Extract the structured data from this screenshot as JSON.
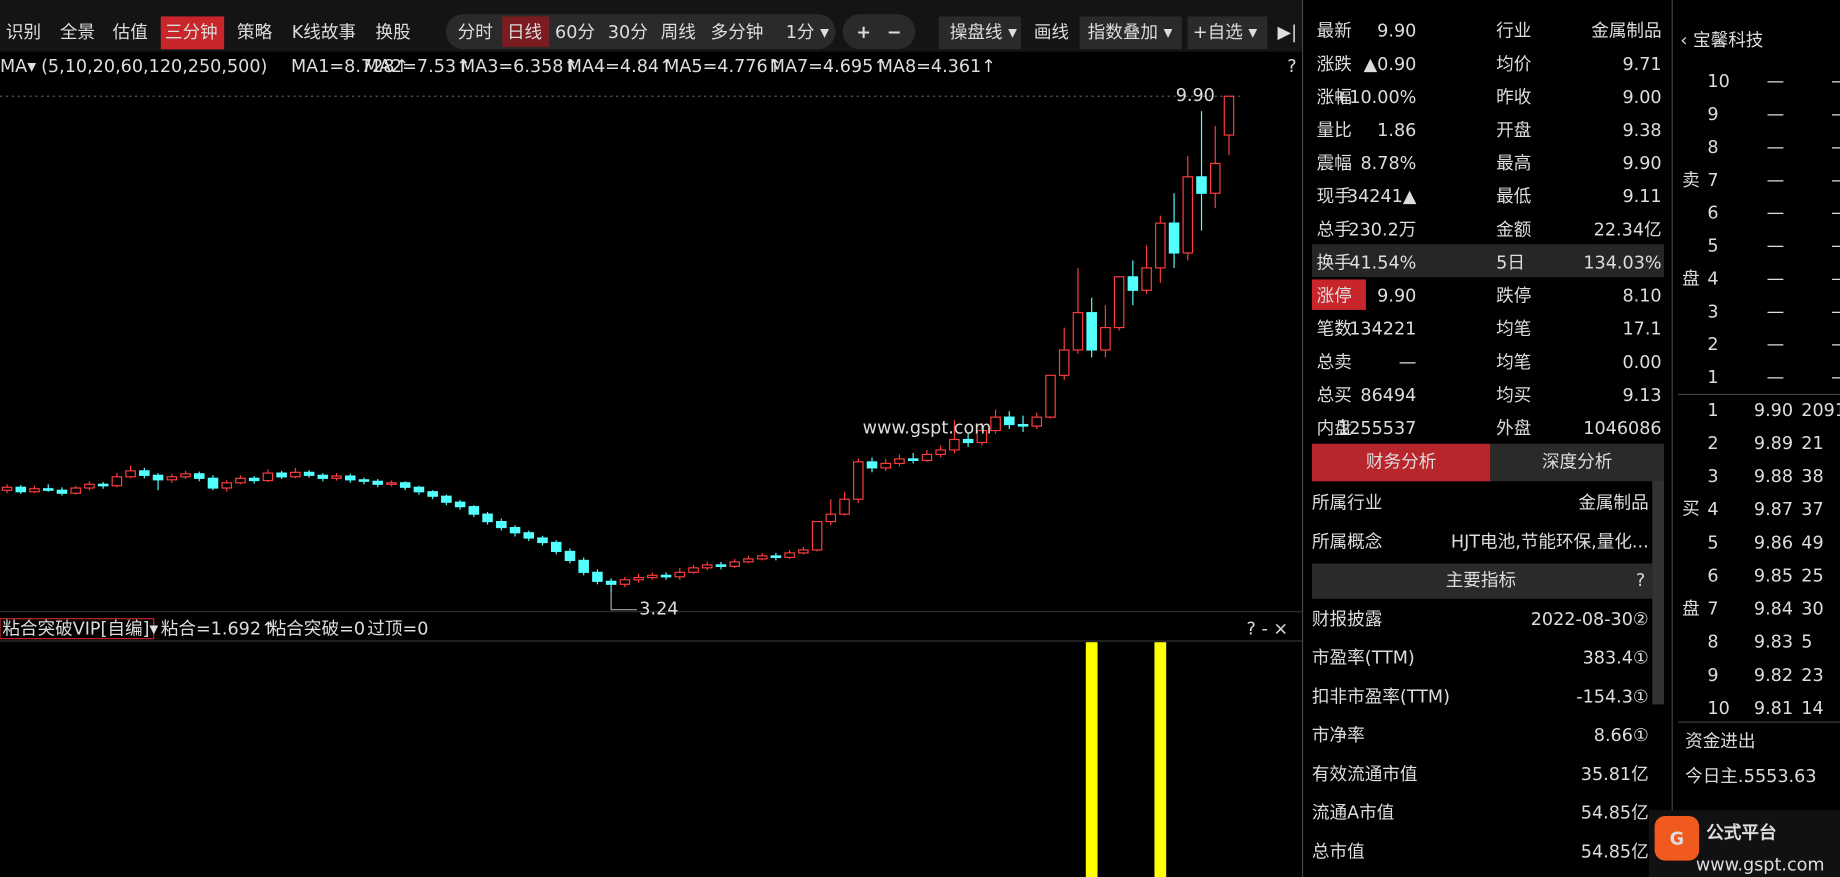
{
  "toolbar": {
    "left": [
      "识别",
      "全景",
      "估值",
      "三分钟",
      "策略",
      "K线故事",
      "换股"
    ],
    "periods": [
      "分时",
      "日线",
      "60分",
      "30分",
      "周线",
      "多分钟",
      "1分 ▾"
    ],
    "zoom": [
      "+",
      "−"
    ],
    "tools": [
      "操盘线 ▾",
      "画线",
      "指数叠加 ▾",
      "+自选 ▾"
    ],
    "collapse": "▶|"
  },
  "ma_legend": {
    "label": "MA▾",
    "params": "(5,10,20,60,120,250,500)",
    "items": [
      {
        "text": "MA1=8.728↑",
        "color": "#ffffff"
      },
      {
        "text": "MA2=7.53↑",
        "color": "#ffff33"
      },
      {
        "text": "MA3=6.358↑",
        "color": "#ff44ff"
      },
      {
        "text": "MA4=4.84↑",
        "color": "#ff3333"
      },
      {
        "text": "MA5=4.776↑",
        "color": "#33ff33"
      },
      {
        "text": "MA7=4.695↑",
        "color": "#3a8dff"
      },
      {
        "text": "MA8=4.361↑",
        "color": "#b040ff"
      }
    ],
    "help": "?"
  },
  "chart_data": {
    "type": "candlestick",
    "ylim": [
      3.04,
      10.12
    ],
    "up_color": "#ff3d3d",
    "down_color": "#54ffff",
    "high_label": "9.90",
    "low_label": "3.24",
    "watermark": "www.gspt.com",
    "candles": [
      [
        4.62,
        4.66,
        4.7,
        4.58
      ],
      [
        4.66,
        4.6,
        4.69,
        4.57
      ],
      [
        4.6,
        4.64,
        4.68,
        4.58
      ],
      [
        4.64,
        4.62,
        4.7,
        4.6
      ],
      [
        4.62,
        4.58,
        4.66,
        4.55
      ],
      [
        4.58,
        4.65,
        4.68,
        4.56
      ],
      [
        4.65,
        4.7,
        4.74,
        4.62
      ],
      [
        4.7,
        4.68,
        4.73,
        4.64
      ],
      [
        4.68,
        4.8,
        4.85,
        4.66
      ],
      [
        4.8,
        4.88,
        4.95,
        4.78
      ],
      [
        4.88,
        4.82,
        4.92,
        4.78
      ],
      [
        4.82,
        4.76,
        4.85,
        4.62
      ],
      [
        4.76,
        4.8,
        4.84,
        4.72
      ],
      [
        4.8,
        4.84,
        4.88,
        4.77
      ],
      [
        4.84,
        4.78,
        4.87,
        4.74
      ],
      [
        4.78,
        4.65,
        4.82,
        4.62
      ],
      [
        4.65,
        4.72,
        4.76,
        4.6
      ],
      [
        4.72,
        4.78,
        4.82,
        4.7
      ],
      [
        4.78,
        4.75,
        4.81,
        4.71
      ],
      [
        4.75,
        4.85,
        4.9,
        4.73
      ],
      [
        4.85,
        4.8,
        4.88,
        4.77
      ],
      [
        4.8,
        4.86,
        4.92,
        4.78
      ],
      [
        4.86,
        4.82,
        4.89,
        4.79
      ],
      [
        4.82,
        4.78,
        4.85,
        4.74
      ],
      [
        4.78,
        4.81,
        4.85,
        4.75
      ],
      [
        4.81,
        4.76,
        4.84,
        4.72
      ],
      [
        4.76,
        4.74,
        4.79,
        4.7
      ],
      [
        4.74,
        4.7,
        4.77,
        4.66
      ],
      [
        4.7,
        4.72,
        4.75,
        4.67
      ],
      [
        4.72,
        4.66,
        4.74,
        4.62
      ],
      [
        4.66,
        4.6,
        4.68,
        4.56
      ],
      [
        4.6,
        4.54,
        4.62,
        4.5
      ],
      [
        4.54,
        4.46,
        4.56,
        4.42
      ],
      [
        4.46,
        4.4,
        4.49,
        4.36
      ],
      [
        4.4,
        4.3,
        4.42,
        4.26
      ],
      [
        4.3,
        4.2,
        4.33,
        4.16
      ],
      [
        4.2,
        4.12,
        4.24,
        4.08
      ],
      [
        4.12,
        4.05,
        4.15,
        4.0
      ],
      [
        4.05,
        3.98,
        4.08,
        3.94
      ],
      [
        3.98,
        3.92,
        4.01,
        3.88
      ],
      [
        3.92,
        3.8,
        3.95,
        3.76
      ],
      [
        3.8,
        3.68,
        3.84,
        3.64
      ],
      [
        3.68,
        3.52,
        3.72,
        3.48
      ],
      [
        3.52,
        3.4,
        3.56,
        3.36
      ],
      [
        3.4,
        3.36,
        3.44,
        3.24
      ],
      [
        3.36,
        3.42,
        3.46,
        3.32
      ],
      [
        3.42,
        3.45,
        3.5,
        3.38
      ],
      [
        3.45,
        3.48,
        3.52,
        3.42
      ],
      [
        3.48,
        3.46,
        3.52,
        3.42
      ],
      [
        3.46,
        3.52,
        3.58,
        3.42
      ],
      [
        3.52,
        3.58,
        3.62,
        3.5
      ],
      [
        3.58,
        3.62,
        3.66,
        3.55
      ],
      [
        3.62,
        3.6,
        3.66,
        3.56
      ],
      [
        3.6,
        3.66,
        3.7,
        3.58
      ],
      [
        3.66,
        3.7,
        3.74,
        3.64
      ],
      [
        3.7,
        3.74,
        3.78,
        3.68
      ],
      [
        3.74,
        3.72,
        3.78,
        3.68
      ],
      [
        3.72,
        3.78,
        3.82,
        3.7
      ],
      [
        3.78,
        3.82,
        3.86,
        3.76
      ],
      [
        3.82,
        4.2,
        4.2,
        3.8
      ],
      [
        4.2,
        4.3,
        4.5,
        4.15
      ],
      [
        4.3,
        4.5,
        4.6,
        4.28
      ],
      [
        4.5,
        5.0,
        5.05,
        4.45
      ],
      [
        5.0,
        4.92,
        5.06,
        4.86
      ],
      [
        4.92,
        4.98,
        5.04,
        4.88
      ],
      [
        4.98,
        5.04,
        5.1,
        4.94
      ],
      [
        5.04,
        5.02,
        5.12,
        4.98
      ],
      [
        5.02,
        5.1,
        5.16,
        5.0
      ],
      [
        5.1,
        5.16,
        5.22,
        5.06
      ],
      [
        5.16,
        5.3,
        5.56,
        5.12
      ],
      [
        5.3,
        5.26,
        5.38,
        5.2
      ],
      [
        5.26,
        5.42,
        5.52,
        5.22
      ],
      [
        5.42,
        5.6,
        5.7,
        5.38
      ],
      [
        5.6,
        5.5,
        5.68,
        5.44
      ],
      [
        5.5,
        5.48,
        5.62,
        5.4
      ],
      [
        5.48,
        5.6,
        5.66,
        5.44
      ],
      [
        5.6,
        6.16,
        6.16,
        5.58
      ],
      [
        6.16,
        6.5,
        6.8,
        6.1
      ],
      [
        6.5,
        7.0,
        7.6,
        6.45
      ],
      [
        7.0,
        6.5,
        7.2,
        6.4
      ],
      [
        6.5,
        6.8,
        7.1,
        6.4
      ],
      [
        6.8,
        7.48,
        7.48,
        6.76
      ],
      [
        7.48,
        7.3,
        7.7,
        7.1
      ],
      [
        7.3,
        7.6,
        7.9,
        7.25
      ],
      [
        7.6,
        8.2,
        8.3,
        7.4
      ],
      [
        8.2,
        7.8,
        8.6,
        7.6
      ],
      [
        7.8,
        8.82,
        9.1,
        7.7
      ],
      [
        8.82,
        8.6,
        9.7,
        8.1
      ],
      [
        8.6,
        9.0,
        9.5,
        8.4
      ],
      [
        9.38,
        9.9,
        9.9,
        9.11
      ]
    ],
    "signal_candles": [
      79,
      84
    ],
    "signal_color": "#ffff00"
  },
  "indicator": {
    "name": "粘合突破VIP[自编]▾",
    "items": [
      {
        "text": "粘合=1.692↑",
        "color": "#ffffff"
      },
      {
        "text": "粘合突破=0",
        "color": "#ff3333"
      },
      {
        "text": "过顶=0",
        "color": "#ffff33"
      }
    ],
    "controls": "? - ×"
  },
  "quote": {
    "rows": [
      [
        "最新",
        "9.90",
        "行业",
        "金属制品"
      ],
      [
        "涨跌",
        "▲0.90",
        "均价",
        "9.71"
      ],
      [
        "涨幅",
        "+10.00%",
        "昨收",
        "9.00"
      ],
      [
        "量比",
        "1.86",
        "开盘",
        "9.38"
      ],
      [
        "震幅",
        "8.78%",
        "最高",
        "9.90"
      ],
      [
        "现手",
        "34241▲",
        "最低",
        "9.11"
      ],
      [
        "总手",
        "230.2万",
        "金额",
        "22.34亿"
      ],
      [
        "换手",
        "41.54%",
        "5日",
        "134.03%"
      ],
      [
        "涨停",
        "9.90",
        "跌停",
        "8.10"
      ],
      [
        "笔数",
        "134221",
        "均笔",
        "17.1"
      ],
      [
        "总卖",
        "—",
        "均笔",
        "0.00"
      ],
      [
        "总买",
        "86494",
        "均买",
        "9.13"
      ],
      [
        "内盘",
        "1255537",
        "外盘",
        "1046086"
      ]
    ],
    "value_colors": [
      [
        "#ff3b3b",
        "#dddddd"
      ],
      [
        "#ff3b3b",
        "#ff3b3b"
      ],
      [
        "#ff3b3b",
        "#dddddd"
      ],
      [
        "#dddddd",
        "#ff3b3b"
      ],
      [
        "#dddddd",
        "#ff3b3b"
      ],
      [
        "#dddddd",
        "#ff3b3b"
      ],
      [
        "#dddddd",
        "#3a8dff"
      ],
      [
        "#dddddd",
        "#dddddd"
      ],
      [
        "#ff3b3b",
        "#33dd33"
      ],
      [
        "#3a8dff",
        "#dddddd"
      ],
      [
        "#dddddd",
        "#33dd33"
      ],
      [
        "#dddddd",
        "#ff3b3b"
      ],
      [
        "#33dd33",
        "#ff3b3b"
      ]
    ]
  },
  "finance": {
    "tabs": [
      "财务分析",
      "深度分析"
    ],
    "industry": {
      "label": "所属行业",
      "value": "金属制品"
    },
    "concept": {
      "label": "所属概念",
      "value": "HJT电池,节能环保,量化..."
    },
    "section": "主要指标",
    "section_help": "?",
    "rows": [
      {
        "label": "财报披露",
        "value": "2022-08-30②",
        "color": "#cccccc"
      },
      {
        "label": "市盈率(TTM)",
        "value": "383.4①",
        "color": "#ff3b3b"
      },
      {
        "label": "扣非市盈率(TTM)",
        "value": "-154.3①",
        "color": "#33dd33"
      },
      {
        "label": "市净率",
        "value": "8.66①",
        "color": "#ff3b3b"
      },
      {
        "label": "有效流通市值",
        "value": "35.81亿",
        "color": "#3a8dff"
      },
      {
        "label": "流通A市值",
        "value": "54.85亿",
        "color": "#3a8dff"
      },
      {
        "label": "总市值",
        "value": "54.85亿",
        "color": "#3a8dff"
      }
    ]
  },
  "orderbook": {
    "title": "‹ 宝馨科技",
    "sell_side": [
      "卖",
      "盘"
    ],
    "buy_side": [
      "买",
      "盘"
    ],
    "sell": [
      [
        "10",
        "—",
        "—"
      ],
      [
        "9",
        "—",
        "—"
      ],
      [
        "8",
        "—",
        "—"
      ],
      [
        "7",
        "—",
        "—"
      ],
      [
        "6",
        "—",
        "—"
      ],
      [
        "5",
        "—",
        "—"
      ],
      [
        "4",
        "—",
        "—"
      ],
      [
        "3",
        "—",
        "—"
      ],
      [
        "2",
        "—",
        "—"
      ],
      [
        "1",
        "—",
        "—"
      ]
    ],
    "buy": [
      [
        "1",
        "9.90",
        "2091"
      ],
      [
        "2",
        "9.89",
        "21"
      ],
      [
        "3",
        "9.88",
        "38"
      ],
      [
        "4",
        "9.87",
        "37"
      ],
      [
        "5",
        "9.86",
        "49"
      ],
      [
        "6",
        "9.85",
        "25"
      ],
      [
        "7",
        "9.84",
        "30"
      ],
      [
        "8",
        "9.83",
        "5"
      ],
      [
        "9",
        "9.82",
        "23"
      ],
      [
        "10",
        "9.81",
        "14"
      ]
    ],
    "flow_title": "资金进出",
    "flow_label": "今日主..",
    "flow_value": "5553.63"
  },
  "logo": {
    "text": "公式平台",
    "url": "www.gspt.com",
    "mark": "G"
  }
}
